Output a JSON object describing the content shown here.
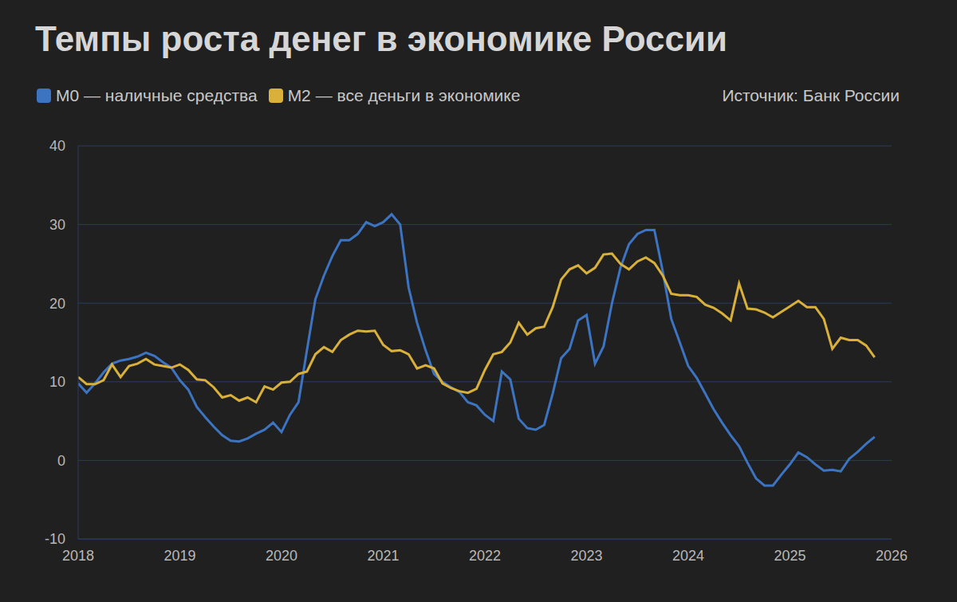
{
  "chart_data": {
    "type": "line",
    "title": "Темпы роста денег в экономике России",
    "source": "Источник: Банк России",
    "legend": "top-left",
    "grid": true,
    "x": [
      2018,
      2018.083,
      2018.167,
      2018.25,
      2018.333,
      2018.417,
      2018.5,
      2018.583,
      2018.667,
      2018.75,
      2018.833,
      2018.917,
      2019,
      2019.083,
      2019.167,
      2019.25,
      2019.333,
      2019.417,
      2019.5,
      2019.583,
      2019.667,
      2019.75,
      2019.833,
      2019.917,
      2020,
      2020.083,
      2020.167,
      2020.25,
      2020.333,
      2020.417,
      2020.5,
      2020.583,
      2020.667,
      2020.75,
      2020.833,
      2020.917,
      2021,
      2021.083,
      2021.167,
      2021.25,
      2021.333,
      2021.417,
      2021.5,
      2021.583,
      2021.667,
      2021.75,
      2021.833,
      2021.917,
      2022,
      2022.083,
      2022.167,
      2022.25,
      2022.333,
      2022.417,
      2022.5,
      2022.583,
      2022.667,
      2022.75,
      2022.833,
      2022.917,
      2023,
      2023.083,
      2023.167,
      2023.25,
      2023.333,
      2023.417,
      2023.5,
      2023.583,
      2023.667,
      2023.75,
      2023.833,
      2023.917,
      2024,
      2024.083,
      2024.167,
      2024.25,
      2024.333,
      2024.417,
      2024.5,
      2024.583,
      2024.667,
      2024.75,
      2024.833,
      2024.917,
      2025,
      2025.083,
      2025.167,
      2025.25,
      2025.333,
      2025.417,
      2025.5,
      2025.583,
      2025.667,
      2025.75,
      2025.833
    ],
    "series": [
      {
        "name": "M0 — наличные средства",
        "color": "#3d74c2",
        "values": [
          9.8,
          8.6,
          9.8,
          11.2,
          12.3,
          12.7,
          12.9,
          13.2,
          13.7,
          13.3,
          12.5,
          11.8,
          10.2,
          9.0,
          6.8,
          5.5,
          4.3,
          3.2,
          2.5,
          2.4,
          2.8,
          3.4,
          3.9,
          4.8,
          3.6,
          5.8,
          7.4,
          14.0,
          20.5,
          23.5,
          26.0,
          28.0,
          28.0,
          28.8,
          30.3,
          29.8,
          30.3,
          31.3,
          30.0,
          22.0,
          17.5,
          14.0,
          11.0,
          10.0,
          9.3,
          8.7,
          7.4,
          7.0,
          5.8,
          5.0,
          11.3,
          10.3,
          5.3,
          4.1,
          3.9,
          4.5,
          8.5,
          13.0,
          14.2,
          17.8,
          18.5,
          12.3,
          14.5,
          20.0,
          24.5,
          27.5,
          28.8,
          29.3,
          29.3,
          24.0,
          18.0,
          15.0,
          12.0,
          10.5,
          8.5,
          6.5,
          4.8,
          3.2,
          1.8,
          -0.3,
          -2.3,
          -3.2,
          -3.2,
          -1.8,
          -0.5,
          1.0,
          0.4,
          -0.5,
          -1.3,
          -1.2,
          -1.4,
          0.2,
          1.1,
          2.1,
          3.0
        ]
      },
      {
        "name": "M2 — все деньги в экономике",
        "color": "#d8b03a",
        "values": [
          10.6,
          9.7,
          9.7,
          10.2,
          12.2,
          10.6,
          12.0,
          12.3,
          12.9,
          12.2,
          12.0,
          11.8,
          12.2,
          11.5,
          10.3,
          10.2,
          9.3,
          8.0,
          8.3,
          7.6,
          8.0,
          7.4,
          9.4,
          9.0,
          9.9,
          10.0,
          11.0,
          11.3,
          13.5,
          14.4,
          13.8,
          15.3,
          16.0,
          16.5,
          16.4,
          16.5,
          14.7,
          13.9,
          14.0,
          13.5,
          11.7,
          12.1,
          11.7,
          9.8,
          9.2,
          8.8,
          8.6,
          9.1,
          11.5,
          13.5,
          13.8,
          15.0,
          17.5,
          16.0,
          16.8,
          17.0,
          19.5,
          23.0,
          24.3,
          24.8,
          23.8,
          24.5,
          26.2,
          26.3,
          25.0,
          24.3,
          25.3,
          25.8,
          25.1,
          23.5,
          21.2,
          21.0,
          21.0,
          20.8,
          19.8,
          19.4,
          18.7,
          17.8,
          22.5,
          19.3,
          19.2,
          18.8,
          18.2,
          18.9,
          19.6,
          20.3,
          19.5,
          19.5,
          18.0,
          14.2,
          15.6,
          15.3,
          15.3,
          14.6,
          13.1
        ]
      }
    ],
    "xlim": [
      2018,
      2026
    ],
    "xticks": [
      2018,
      2019,
      2020,
      2021,
      2022,
      2023,
      2024,
      2025,
      2026
    ],
    "ylim": [
      -10,
      40
    ],
    "yticks": [
      -10,
      0,
      10,
      20,
      30,
      40
    ]
  }
}
